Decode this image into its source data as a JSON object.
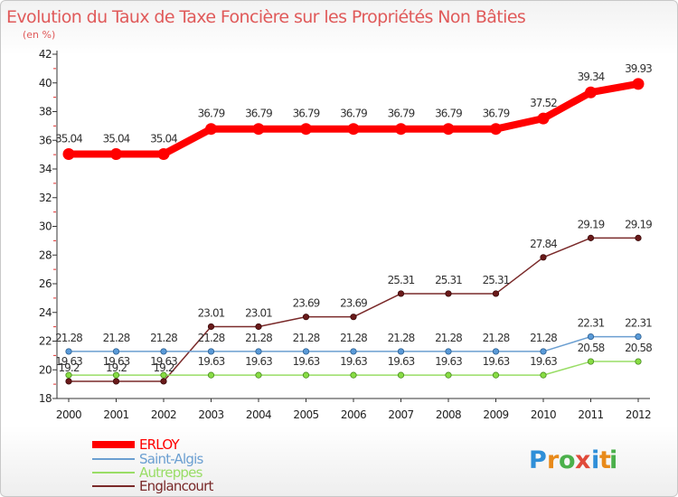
{
  "chart_data": {
    "type": "line",
    "title": "Evolution du Taux de Taxe Foncière sur les Propriétés Non Bâties",
    "unit": "(en %)",
    "xlabel": "",
    "ylabel": "",
    "ylim": [
      18,
      42
    ],
    "yticks": [
      "18",
      "20",
      "22",
      "24",
      "26",
      "28",
      "30",
      "32",
      "34",
      "36",
      "38",
      "40",
      "42"
    ],
    "categories": [
      "2000",
      "2001",
      "2002",
      "2003",
      "2004",
      "2005",
      "2006",
      "2007",
      "2008",
      "2009",
      "2010",
      "2011",
      "2012"
    ],
    "series": [
      {
        "name": "ERLOY",
        "color": "#ff0000",
        "values": [
          35.04,
          35.04,
          35.04,
          36.79,
          36.79,
          36.79,
          36.79,
          36.79,
          36.79,
          36.79,
          37.52,
          39.34,
          39.93
        ],
        "labels": [
          "35.04",
          "35.04",
          "35.04",
          "36.79",
          "36.79",
          "36.79",
          "36.79",
          "36.79",
          "36.79",
          "36.79",
          "37.52",
          "39.34",
          "39.93"
        ]
      },
      {
        "name": "Saint-Algis",
        "color": "#6b9fd1",
        "values": [
          21.28,
          21.28,
          21.28,
          21.28,
          21.28,
          21.28,
          21.28,
          21.28,
          21.28,
          21.28,
          21.28,
          22.31,
          22.31
        ],
        "labels": [
          "21.28",
          "21.28",
          "21.28",
          "21.28",
          "21.28",
          "21.28",
          "21.28",
          "21.28",
          "21.28",
          "21.28",
          "21.28",
          "22.31",
          "22.31"
        ]
      },
      {
        "name": "Autreppes",
        "color": "#99dd66",
        "values": [
          19.63,
          19.63,
          19.63,
          19.63,
          19.63,
          19.63,
          19.63,
          19.63,
          19.63,
          19.63,
          19.63,
          20.58,
          20.58
        ],
        "labels": [
          "19.63",
          "19.63",
          "19.63",
          "19.63",
          "19.63",
          "19.63",
          "19.63",
          "19.63",
          "19.63",
          "19.63",
          "19.63",
          "20.58",
          "20.58"
        ]
      },
      {
        "name": "Englancourt",
        "color": "#7a2a2a",
        "values": [
          19.2,
          19.2,
          19.2,
          23.01,
          23.01,
          23.69,
          23.69,
          25.31,
          25.31,
          25.31,
          27.84,
          29.19,
          29.19
        ],
        "labels": [
          "19.2",
          "19.2",
          "19.2",
          "23.01",
          "23.01",
          "23.69",
          "23.69",
          "25.31",
          "25.31",
          "25.31",
          "27.84",
          "29.19",
          "29.19"
        ]
      }
    ],
    "legend": "bottom-left",
    "grid": false
  },
  "logo": {
    "text": "Proxiti",
    "letters": [
      "P",
      "r",
      "o",
      "x",
      "i",
      "t",
      "i"
    ],
    "colors": [
      "#2f8fd8",
      "#e88a1a",
      "#4bb04b",
      "#e04a3a",
      "#2f8fd8",
      "#e88a1a",
      "#4bb04b"
    ]
  }
}
